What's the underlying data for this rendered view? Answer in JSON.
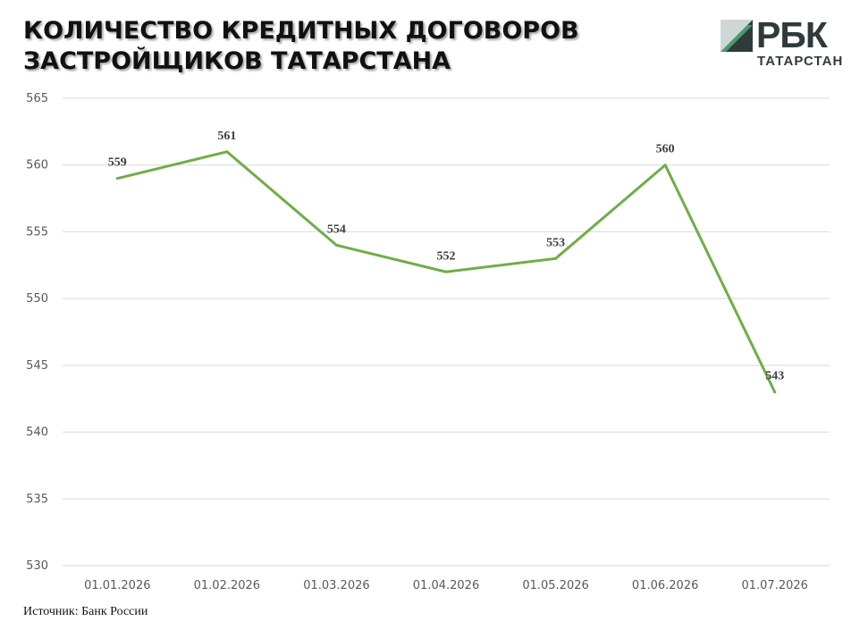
{
  "header": {
    "title_line1": "КОЛИЧЕСТВО КРЕДИТНЫХ ДОГОВОРОВ",
    "title_line2": "ЗАСТРОЙЩИКОВ ТАТАРСТАНА"
  },
  "logo": {
    "word": "РБК",
    "sub": "ТАТАРСТАН",
    "colors": {
      "dark": "#2f3b3b",
      "green": "#4a9a6e",
      "light": "#cfd6d6"
    }
  },
  "source": "Источник: Банк России",
  "chart_data": {
    "type": "line",
    "categories": [
      "01.01.2026",
      "01.02.2026",
      "01.03.2026",
      "01.04.2026",
      "01.05.2026",
      "01.06.2026",
      "01.07.2026"
    ],
    "values": [
      559,
      561,
      554,
      552,
      553,
      560,
      543
    ],
    "data_labels": [
      "559",
      "561",
      "554",
      "552",
      "553",
      "560",
      "543"
    ],
    "yticks": [
      "530",
      "535",
      "540",
      "545",
      "550",
      "555",
      "560",
      "565"
    ],
    "ylim": [
      530,
      565
    ],
    "grid": true,
    "legend": "none",
    "line_color": "#70ad47",
    "grid_color": "#d9d9d9"
  }
}
